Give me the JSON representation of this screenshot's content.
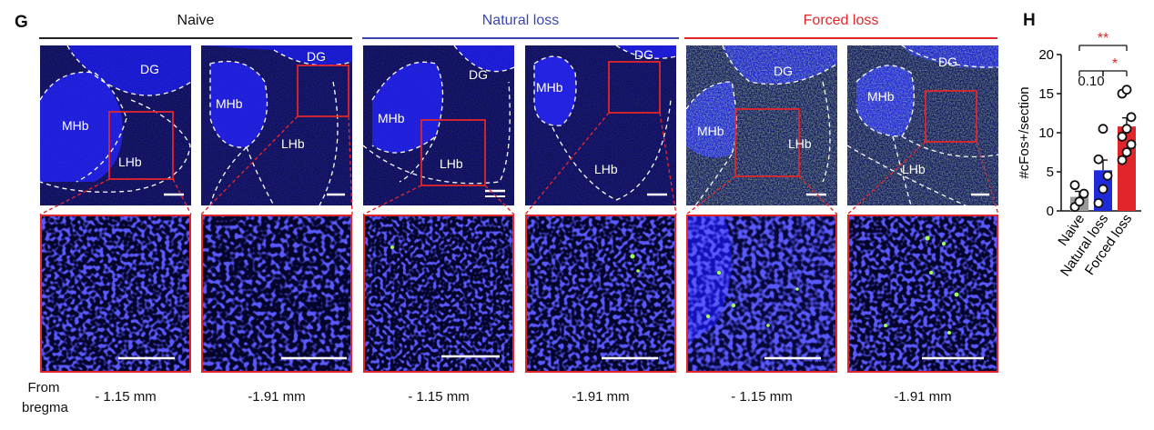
{
  "panel_g": {
    "letter": "G",
    "groups": [
      {
        "title": "Naive",
        "color": "#222222"
      },
      {
        "title": "Natural loss",
        "color": "#3b47b0"
      },
      {
        "title": "Forced loss",
        "color": "#e0262b"
      }
    ],
    "region_labels": {
      "dg": "DG",
      "mhb": "MHb",
      "lhb": "LHb"
    },
    "bregma_label_line1": "From",
    "bregma_label_line2": "bregma",
    "positions": [
      "- 1.15 mm",
      "-1.91 mm",
      "- 1.15 mm",
      "-1.91 mm",
      "- 1.15 mm",
      "-1.91 mm"
    ],
    "colors": {
      "tissue": "#1a1ad6",
      "background": "#050530",
      "roi": "#e0262b",
      "cfos": "#9dff5a"
    }
  },
  "panel_h": {
    "letter": "H"
  },
  "chart_data": {
    "type": "bar",
    "categories": [
      "Naive",
      "Natural loss",
      "Forced loss"
    ],
    "values": [
      1.8,
      5.2,
      10.8
    ],
    "errors": [
      0.7,
      1.3,
      1.1
    ],
    "points": [
      [
        0.5,
        1.2,
        2.2,
        3.3
      ],
      [
        1.0,
        2.8,
        4.5,
        6.6,
        10.5
      ],
      [
        6.5,
        7.5,
        8.5,
        9.5,
        10.5,
        12.0,
        15.0,
        15.5
      ]
    ],
    "bar_colors": [
      "#9a9a9a",
      "#1f2bdb",
      "#e0262b"
    ],
    "ylabel": "#cFos+/section",
    "ylim": [
      0,
      20
    ],
    "yticks": [
      0,
      5,
      10,
      15,
      20
    ],
    "annotations": [
      {
        "from": "Naive",
        "to": "Forced loss",
        "text": "**",
        "color": "#e0262b"
      },
      {
        "from": "Naive",
        "to": "Natural loss",
        "text": "0.10",
        "color": "#111111"
      },
      {
        "from": "Natural loss",
        "to": "Forced loss",
        "text": "*",
        "color": "#e0262b"
      }
    ]
  }
}
